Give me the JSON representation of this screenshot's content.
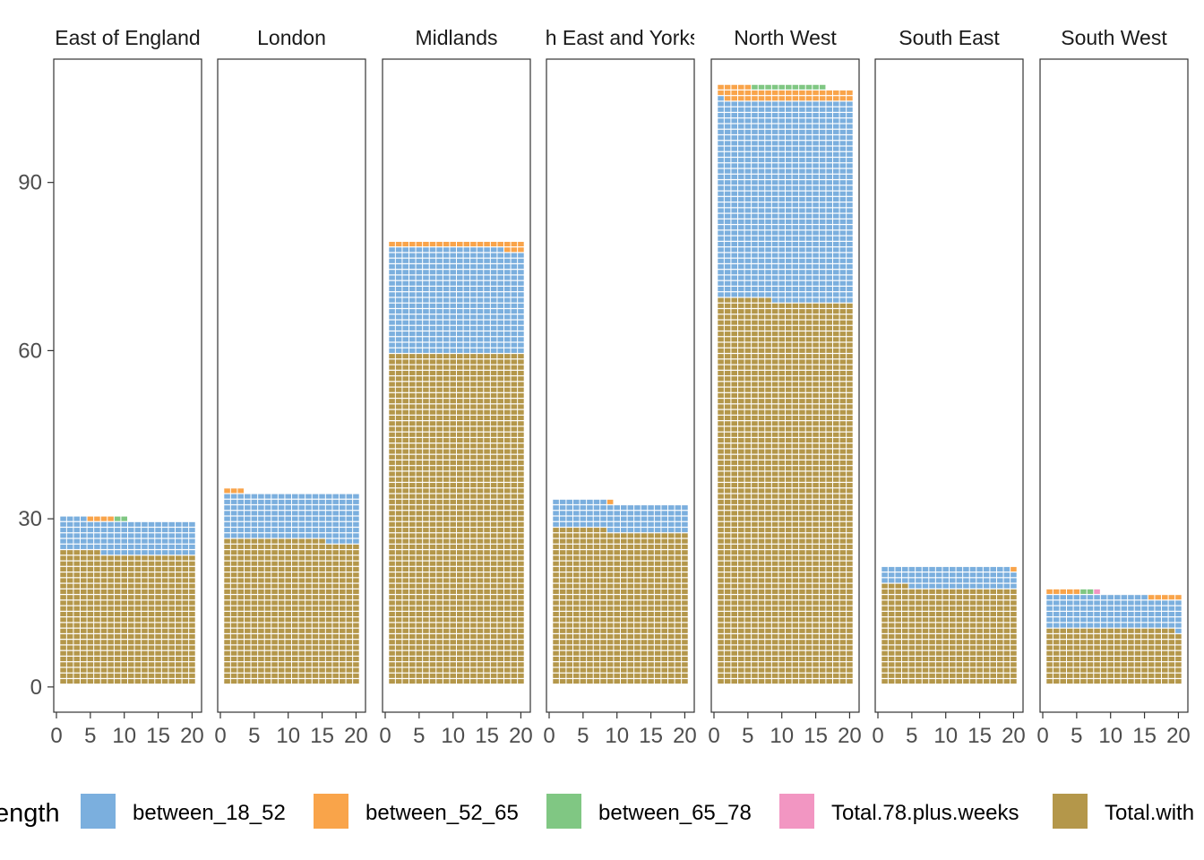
{
  "chart_data": {
    "type": "waffle",
    "xlabel": "",
    "ylabel": "",
    "x_ticks": [
      "0",
      "5",
      "10",
      "15",
      "20"
    ],
    "y_ticks": [
      "0",
      "30",
      "60",
      "90"
    ],
    "x_range": [
      0,
      21
    ],
    "ylim": [
      -4.5,
      112
    ],
    "grid": false,
    "legend_position": "bottom",
    "columns_per_panel": 20,
    "legend": {
      "title": "ength",
      "entries": [
        {
          "key": "between_18_52",
          "label": "between_18_52",
          "color": "#7BAFDE"
        },
        {
          "key": "between_52_65",
          "label": "between_52_65",
          "color": "#F9A44A"
        },
        {
          "key": "between_65_78",
          "label": "between_65_78",
          "color": "#80C783"
        },
        {
          "key": "Total.78.plus.weeks",
          "label": "Total.78.plus.weeks",
          "color": "#F296C2"
        },
        {
          "key": "Total.with",
          "label": "Total.with",
          "color": "#B4974A"
        }
      ]
    },
    "panels": [
      {
        "name": "East of England",
        "strip_label": "East of England",
        "counts": {
          "Total.with": 466,
          "between_18_52": 118,
          "between_52_65": 4,
          "between_65_78": 2,
          "Total.78.plus.weeks": 0
        }
      },
      {
        "name": "London",
        "strip_label": "London",
        "counts": {
          "Total.with": 515,
          "between_18_52": 165,
          "between_52_65": 3,
          "between_65_78": 0,
          "Total.78.plus.weeks": 0
        }
      },
      {
        "name": "Midlands",
        "strip_label": "Midlands",
        "counts": {
          "Total.with": 1180,
          "between_18_52": 377,
          "between_52_65": 23,
          "between_65_78": 0,
          "Total.78.plus.weeks": 0
        }
      },
      {
        "name": "North East and Yorkshire",
        "strip_label": "North East and Yorkshire",
        "counts": {
          "Total.with": 548,
          "between_18_52": 100,
          "between_52_65": 1,
          "between_65_78": 0,
          "Total.78.plus.weeks": 0
        }
      },
      {
        "name": "North West",
        "strip_label": "North West",
        "counts": {
          "Total.with": 1368,
          "between_18_52": 713,
          "between_52_65": 44,
          "between_65_78": 11,
          "Total.78.plus.weeks": 0
        }
      },
      {
        "name": "South East",
        "strip_label": "South East",
        "counts": {
          "Total.with": 344,
          "between_18_52": 75,
          "between_52_65": 1,
          "between_65_78": 0,
          "Total.78.plus.weeks": 0
        }
      },
      {
        "name": "South West",
        "strip_label": "South West",
        "counts": {
          "Total.with": 199,
          "between_18_52": 116,
          "between_52_65": 10,
          "between_65_78": 2,
          "Total.78.plus.weeks": 1
        }
      }
    ]
  }
}
